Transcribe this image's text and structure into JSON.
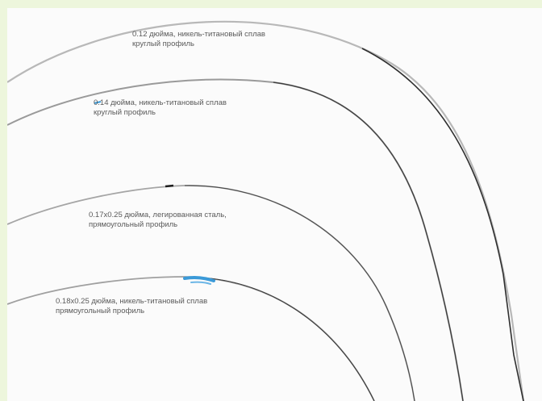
{
  "wires": [
    {
      "id": "wire-1",
      "label_line1": "0.12 дюйма,  никель-титановый сплав",
      "label_line2": "круглый профиль"
    },
    {
      "id": "wire-2",
      "label_line1": "0.14 дюйма, никель-титановый сплав",
      "label_line2": "круглый профиль"
    },
    {
      "id": "wire-3",
      "label_line1": "0.17x0.25 дюйма, легированная сталь,",
      "label_line2": "прямоугольный профиль"
    },
    {
      "id": "wire-4",
      "label_line1": "0.18x0.25 дюйма, никель-титановый сплав",
      "label_line2": "прямоугольный профиль"
    }
  ],
  "colors": {
    "frame_border": "#edf6dc",
    "background": "#fbfbfb",
    "wire_metal": "#8f8f8f",
    "wire_dark": "#2a2a2a",
    "wire_blue_mark": "#3b9ad8"
  }
}
